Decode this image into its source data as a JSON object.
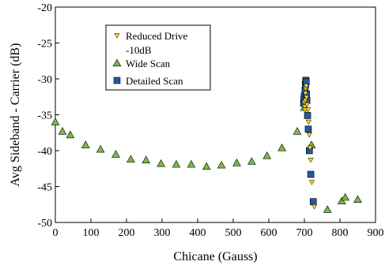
{
  "chart_data": {
    "type": "scatter",
    "xlabel": "Chicane (Gauss)",
    "ylabel": "Avg Sideband - Carrier (dB)",
    "xlim": [
      0,
      900
    ],
    "ylim": [
      -50,
      -20
    ],
    "xticks": [
      "0",
      "100",
      "200",
      "300",
      "400",
      "500",
      "600",
      "700",
      "800",
      "900"
    ],
    "yticks": [
      "-20",
      "-25",
      "-30",
      "-35",
      "-40",
      "-45",
      "-50"
    ],
    "grid": false,
    "legend_position": "top-left",
    "series": [
      {
        "name": "Reduced Drive -10dB",
        "name_lines": [
          "Reduced Drive",
          "-10dB"
        ],
        "marker": "triangle-down",
        "color": "#FFD21E",
        "points": [
          [
            700,
            -33.3
          ],
          [
            701,
            -33.9
          ],
          [
            702,
            -34.3
          ],
          [
            703,
            -33.0
          ],
          [
            703,
            -32.0
          ],
          [
            704,
            -31.4
          ],
          [
            705,
            -31.0
          ],
          [
            706,
            -32.6
          ],
          [
            708,
            -33.6
          ],
          [
            710,
            -34.3
          ],
          [
            712,
            -36.0
          ],
          [
            714,
            -37.8
          ],
          [
            716,
            -39.6
          ],
          [
            718,
            -41.3
          ],
          [
            721,
            -44.4
          ],
          [
            728,
            -47.8
          ]
        ]
      },
      {
        "name": "Wide Scan",
        "marker": "triangle-up",
        "color": "#7DB944",
        "points": [
          [
            0,
            -36.0
          ],
          [
            20,
            -37.3
          ],
          [
            42,
            -37.8
          ],
          [
            85,
            -39.2
          ],
          [
            127,
            -39.8
          ],
          [
            170,
            -40.5
          ],
          [
            212,
            -41.2
          ],
          [
            255,
            -41.3
          ],
          [
            297,
            -41.8
          ],
          [
            340,
            -41.9
          ],
          [
            382,
            -41.9
          ],
          [
            425,
            -42.2
          ],
          [
            467,
            -42.0
          ],
          [
            510,
            -41.7
          ],
          [
            552,
            -41.5
          ],
          [
            595,
            -40.7
          ],
          [
            637,
            -39.6
          ],
          [
            680,
            -37.3
          ],
          [
            700,
            -34.0
          ],
          [
            720,
            -39.2
          ],
          [
            765,
            -48.2
          ],
          [
            805,
            -47.0
          ],
          [
            815,
            -46.5
          ],
          [
            850,
            -46.8
          ]
        ]
      },
      {
        "name": "Detailed Scan",
        "marker": "square",
        "color": "#1F5A9E",
        "points": [
          [
            698,
            -33.4
          ],
          [
            699,
            -32.8
          ],
          [
            700,
            -32.4
          ],
          [
            702,
            -31.6
          ],
          [
            703,
            -30.8
          ],
          [
            704,
            -30.2
          ],
          [
            705,
            -30.4
          ],
          [
            706,
            -32.1
          ],
          [
            707,
            -33.0
          ],
          [
            709,
            -35.1
          ],
          [
            711,
            -37.0
          ],
          [
            714,
            -40.0
          ],
          [
            718,
            -43.3
          ],
          [
            725,
            -47.1
          ]
        ]
      }
    ]
  }
}
